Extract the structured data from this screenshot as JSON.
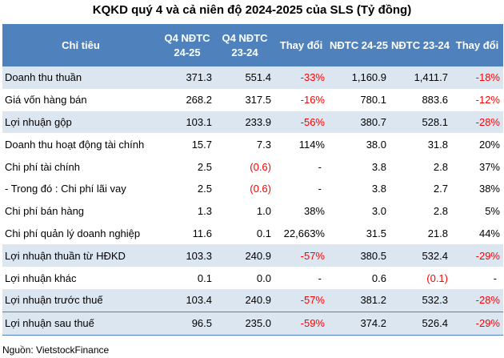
{
  "title": "KQKD quý 4 và cả niên độ 2024-2025 của SLS (Tỷ đồng)",
  "headers": [
    "Chỉ tiêu",
    "Q4 NĐTC 24-25",
    "Q4 NĐTC 23-24",
    "Thay đổi",
    "NĐTC 24-25",
    "NĐTC 23-24",
    "Thay đổi"
  ],
  "rows": [
    {
      "name": "Doanh thu thuần",
      "cells": [
        "371.3",
        "551.4",
        "-33%",
        "1,160.9",
        "1,411.7",
        "-18%"
      ],
      "neg": [
        false,
        false,
        true,
        false,
        false,
        true
      ],
      "shade": true
    },
    {
      "name": "Giá vốn hàng bán",
      "cells": [
        "268.2",
        "317.5",
        "-16%",
        "780.1",
        "883.6",
        "-12%"
      ],
      "neg": [
        false,
        false,
        true,
        false,
        false,
        true
      ],
      "shade": false
    },
    {
      "name": "Lợi nhuận gộp",
      "cells": [
        "103.1",
        "233.9",
        "-56%",
        "380.7",
        "528.1",
        "-28%"
      ],
      "neg": [
        false,
        false,
        true,
        false,
        false,
        true
      ],
      "shade": true
    },
    {
      "name": "Doanh thu hoạt động tài chính",
      "cells": [
        "15.7",
        "7.3",
        "114%",
        "38.0",
        "31.8",
        "20%"
      ],
      "neg": [
        false,
        false,
        false,
        false,
        false,
        false
      ],
      "shade": false
    },
    {
      "name": "Chi phí tài chính",
      "cells": [
        "2.5",
        "(0.6)",
        "-",
        "3.8",
        "2.8",
        "37%"
      ],
      "neg": [
        false,
        true,
        false,
        false,
        false,
        false
      ],
      "shade": false
    },
    {
      "name": "- Trong đó : Chi phí lãi vay",
      "cells": [
        "2.5",
        "(0.6)",
        "-",
        "3.8",
        "2.7",
        "38%"
      ],
      "neg": [
        false,
        true,
        false,
        false,
        false,
        false
      ],
      "shade": false
    },
    {
      "name": "Chi phí bán hàng",
      "cells": [
        "1.3",
        "1.0",
        "38%",
        "3.0",
        "2.8",
        "5%"
      ],
      "neg": [
        false,
        false,
        false,
        false,
        false,
        false
      ],
      "shade": false
    },
    {
      "name": "Chi phí quản lý doanh nghiệp",
      "cells": [
        "11.6",
        "0.1",
        "22,663%",
        "31.5",
        "21.8",
        "44%"
      ],
      "neg": [
        false,
        false,
        false,
        false,
        false,
        false
      ],
      "shade": false
    },
    {
      "name": "Lợi nhuận thuần từ HĐKD",
      "cells": [
        "103.3",
        "240.9",
        "-57%",
        "380.5",
        "532.4",
        "-29%"
      ],
      "neg": [
        false,
        false,
        true,
        false,
        false,
        true
      ],
      "shade": true
    },
    {
      "name": "Lợi nhuận khác",
      "cells": [
        "0.1",
        "0.0",
        "-",
        "0.6",
        "(0.1)",
        "-"
      ],
      "neg": [
        false,
        false,
        false,
        false,
        true,
        false
      ],
      "shade": false
    },
    {
      "name": "Lợi nhuận trước thuế",
      "cells": [
        "103.4",
        "240.9",
        "-57%",
        "381.2",
        "532.3",
        "-28%"
      ],
      "neg": [
        false,
        false,
        true,
        false,
        false,
        true
      ],
      "shade": true
    },
    {
      "name": "Lợi nhuận sau thuế",
      "cells": [
        "96.5",
        "235.0",
        "-59%",
        "374.2",
        "526.4",
        "-29%"
      ],
      "neg": [
        false,
        false,
        true,
        false,
        false,
        true
      ],
      "shade": true,
      "highlight": true
    }
  ],
  "source": "Nguồn: VietstockFinance",
  "colors": {
    "header_bg": "#4f81bd",
    "row_shade": "#dce6f1",
    "negative": "#ff0000"
  }
}
